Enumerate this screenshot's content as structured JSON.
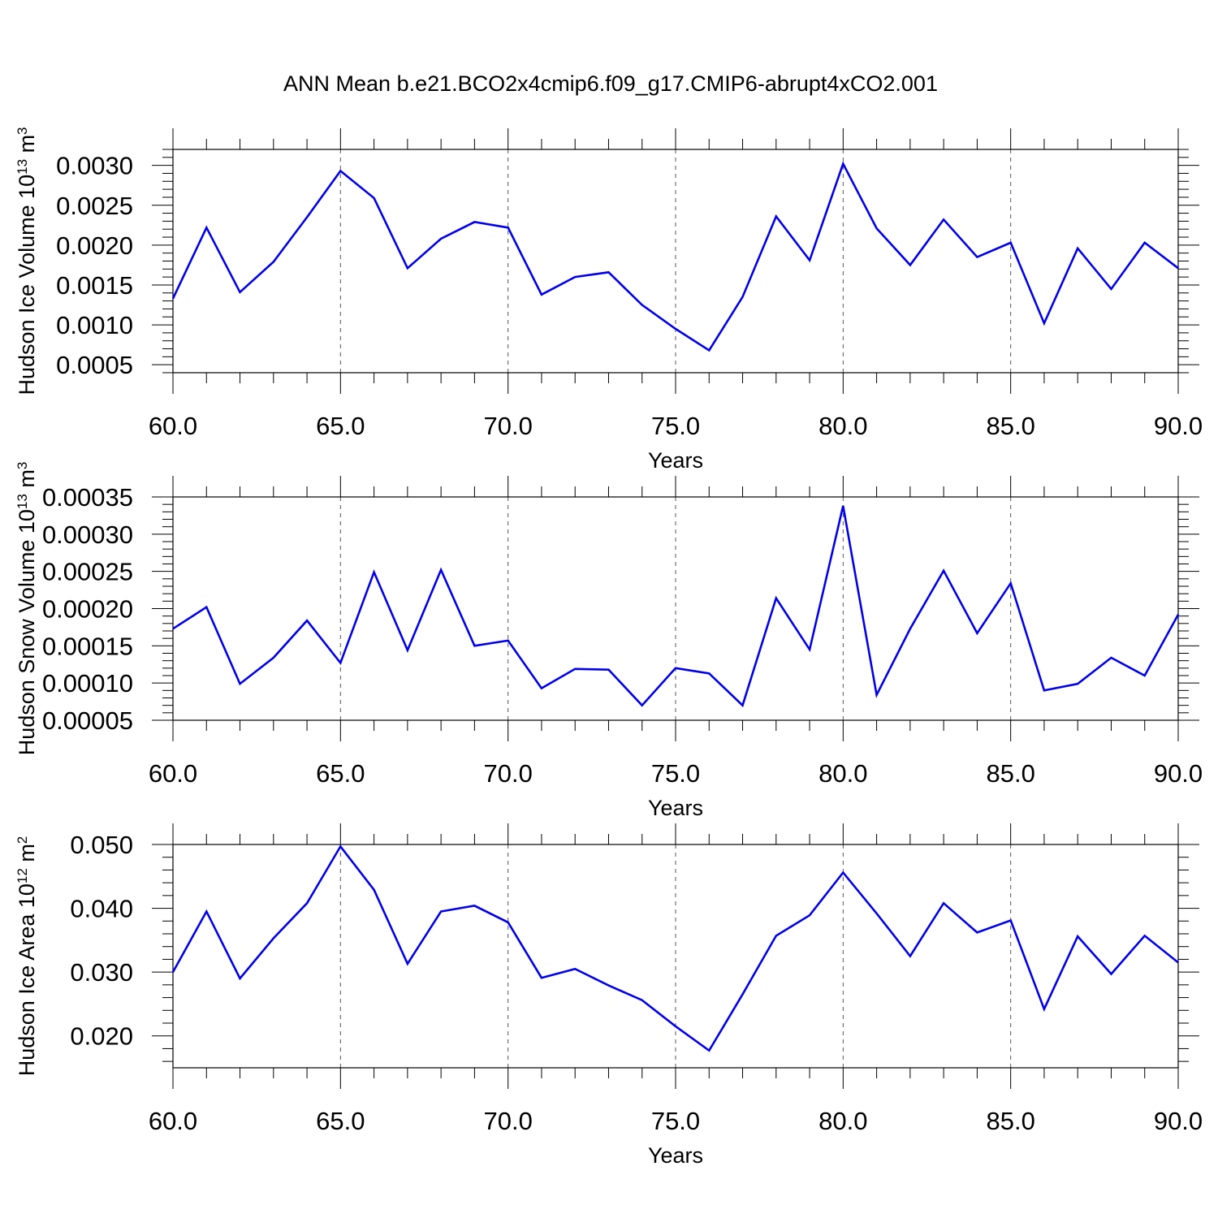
{
  "title": "ANN Mean b.e21.BCO2x4cmip6.f09_g17.CMIP6-abrupt4xCO2.001",
  "colors": {
    "line": "#0000ee",
    "axes": "#000000",
    "grid": "#555555"
  },
  "chart_data": [
    {
      "type": "line",
      "title": "",
      "xlabel": "Years",
      "ylabel": {
        "text": "Hudson Ice Volume 10",
        "sup": "13",
        "unit": " m",
        "unit_sup": "3"
      },
      "xlim": [
        60,
        90
      ],
      "ylim": [
        0.0004,
        0.0032
      ],
      "xticks": [
        "60.0",
        "65.0",
        "70.0",
        "75.0",
        "80.0",
        "85.0",
        "90.0"
      ],
      "yticks": [
        "0.0005",
        "0.0010",
        "0.0015",
        "0.0020",
        "0.0025",
        "0.0030"
      ],
      "grid": "vertical dashed at major x ticks",
      "series": [
        {
          "x": [
            60,
            61,
            62,
            63,
            64,
            65,
            66,
            67,
            68,
            69,
            70,
            71,
            72,
            73,
            74,
            75,
            76,
            77,
            78,
            79,
            80,
            81,
            82,
            83,
            84,
            85,
            86,
            87,
            88,
            89,
            90
          ],
          "values": [
            0.00133,
            0.00222,
            0.00141,
            0.00179,
            0.00235,
            0.00293,
            0.00259,
            0.00171,
            0.00208,
            0.00229,
            0.00222,
            0.00138,
            0.0016,
            0.00166,
            0.00125,
            0.00095,
            0.00068,
            0.00135,
            0.00236,
            0.00181,
            0.00302,
            0.00221,
            0.00175,
            0.00232,
            0.00185,
            0.00203,
            0.00102,
            0.00196,
            0.00145,
            0.00203,
            0.00171
          ]
        }
      ]
    },
    {
      "type": "line",
      "title": "",
      "xlabel": "Years",
      "ylabel": {
        "text": "Hudson Snow Volume 10",
        "sup": "13",
        "unit": " m",
        "unit_sup": "3"
      },
      "xlim": [
        60,
        90
      ],
      "ylim": [
        5e-05,
        0.00035
      ],
      "xticks": [
        "60.0",
        "65.0",
        "70.0",
        "75.0",
        "80.0",
        "85.0",
        "90.0"
      ],
      "yticks": [
        "0.00005",
        "0.00010",
        "0.00015",
        "0.00020",
        "0.00025",
        "0.00030",
        "0.00035"
      ],
      "grid": "vertical dashed at major x ticks",
      "series": [
        {
          "x": [
            60,
            61,
            62,
            63,
            64,
            65,
            66,
            67,
            68,
            69,
            70,
            71,
            72,
            73,
            74,
            75,
            76,
            77,
            78,
            79,
            80,
            81,
            82,
            83,
            84,
            85,
            86,
            87,
            88,
            89,
            90
          ],
          "values": [
            0.000173,
            0.000202,
            9.9e-05,
            0.000134,
            0.000184,
            0.000127,
            0.000249,
            0.000144,
            0.000252,
            0.00015,
            0.000157,
            9.3e-05,
            0.000119,
            0.000118,
            7e-05,
            0.00012,
            0.000113,
            7e-05,
            0.000214,
            0.000145,
            0.000338,
            8.4e-05,
            0.000173,
            0.000251,
            0.000167,
            0.000234,
            9e-05,
            9.9e-05,
            0.000134,
            0.00011,
            0.000192
          ]
        }
      ]
    },
    {
      "type": "line",
      "title": "",
      "xlabel": "Years",
      "ylabel": {
        "text": "Hudson Ice Area 10",
        "sup": "12",
        "unit": " m",
        "unit_sup": "2"
      },
      "xlim": [
        60,
        90
      ],
      "ylim": [
        0.015,
        0.05
      ],
      "xticks": [
        "60.0",
        "65.0",
        "70.0",
        "75.0",
        "80.0",
        "85.0",
        "90.0"
      ],
      "yticks": [
        "0.020",
        "0.030",
        "0.040",
        "0.050"
      ],
      "grid": "vertical dashed at major x ticks",
      "series": [
        {
          "x": [
            60,
            61,
            62,
            63,
            64,
            65,
            66,
            67,
            68,
            69,
            70,
            71,
            72,
            73,
            74,
            75,
            76,
            77,
            78,
            79,
            80,
            81,
            82,
            83,
            84,
            85,
            86,
            87,
            88,
            89,
            90
          ],
          "values": [
            0.03,
            0.0395,
            0.029,
            0.0353,
            0.0408,
            0.0497,
            0.0429,
            0.0313,
            0.0395,
            0.0404,
            0.0378,
            0.0291,
            0.0305,
            0.0279,
            0.0256,
            0.0215,
            0.0177,
            0.0265,
            0.0357,
            0.0389,
            0.0456,
            0.0392,
            0.0325,
            0.0408,
            0.0362,
            0.0381,
            0.0242,
            0.0356,
            0.0297,
            0.0357,
            0.0315
          ]
        }
      ]
    }
  ]
}
